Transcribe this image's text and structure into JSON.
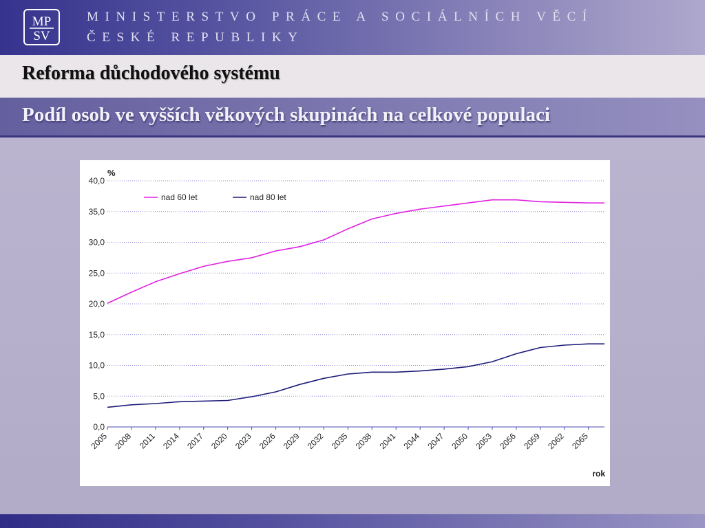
{
  "header": {
    "logo_top": "MP",
    "logo_bottom": "SV",
    "ministry_line1": "MINISTERSTVO PRÁCE A SOCIÁLNÍCH VĚCÍ",
    "ministry_line2": "ČESKÉ REPUBLIKY"
  },
  "title": "Reforma důchodového systému",
  "subtitle": "Podíl osob ve vyšších věkových skupinách na celkové populaci",
  "colors": {
    "series_60": "#e020e0",
    "series_80": "#1c1c78"
  },
  "chart_data": {
    "type": "line",
    "ylabel": "%",
    "xlabel": "rok",
    "ylim": [
      0,
      40
    ],
    "yticks": [
      "0,0",
      "5,0",
      "10,0",
      "15,0",
      "20,0",
      "25,0",
      "30,0",
      "35,0",
      "40,0"
    ],
    "xticks": [
      "2005",
      "2008",
      "2011",
      "2014",
      "2017",
      "2020",
      "2023",
      "2026",
      "2029",
      "2032",
      "2035",
      "2038",
      "2041",
      "2044",
      "2047",
      "2050",
      "2053",
      "2056",
      "2059",
      "2062",
      "2065"
    ],
    "grid": true,
    "legend_position": "top-left",
    "x": [
      2005,
      2008,
      2011,
      2014,
      2017,
      2020,
      2023,
      2026,
      2029,
      2032,
      2035,
      2038,
      2041,
      2044,
      2047,
      2050,
      2053,
      2056,
      2059,
      2062,
      2065,
      2067
    ],
    "series": [
      {
        "name": "nad 60 let",
        "values": [
          20.1,
          21.9,
          23.6,
          24.9,
          26.1,
          26.9,
          27.5,
          28.6,
          29.3,
          30.4,
          32.2,
          33.8,
          34.7,
          35.4,
          35.9,
          36.4,
          36.9,
          36.9,
          36.6,
          36.5,
          36.4,
          36.4
        ]
      },
      {
        "name": "nad 80 let",
        "values": [
          3.2,
          3.6,
          3.8,
          4.1,
          4.2,
          4.3,
          4.9,
          5.7,
          6.9,
          7.9,
          8.6,
          8.9,
          8.9,
          9.1,
          9.4,
          9.8,
          10.6,
          11.9,
          12.9,
          13.3,
          13.5,
          13.5
        ]
      }
    ]
  }
}
